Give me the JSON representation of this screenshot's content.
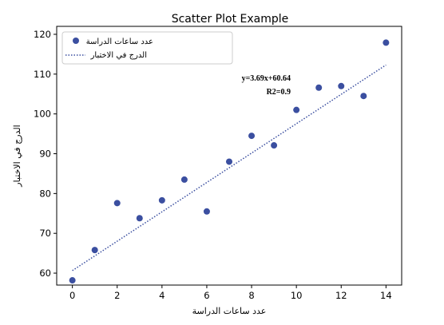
{
  "chart_data": {
    "type": "scatter",
    "title": "Scatter Plot Example",
    "xlabel": "عدد ساعات الدراسة",
    "ylabel": "الدرج في الاختبار",
    "xlim": [
      -0.7,
      14.7
    ],
    "ylim": [
      57,
      122
    ],
    "xticks": [
      0,
      2,
      4,
      6,
      8,
      10,
      12,
      14
    ],
    "yticks": [
      60,
      70,
      80,
      90,
      100,
      110,
      120
    ],
    "series": [
      {
        "name": "عدد ساعات الدراسة",
        "kind": "scatter",
        "color": "#3b4fa0",
        "x": [
          0,
          1,
          2,
          3,
          4,
          5,
          6,
          7,
          8,
          9,
          10,
          11,
          12,
          13,
          14
        ],
        "y": [
          58.2,
          65.8,
          77.6,
          73.8,
          78.3,
          83.5,
          75.5,
          88.0,
          94.5,
          92.1,
          101.0,
          106.6,
          107.0,
          104.5,
          117.9
        ]
      },
      {
        "name": "الدرج في الاختبار",
        "kind": "line",
        "style": "dotted",
        "color": "#3b4fa0",
        "slope": 3.69,
        "intercept": 60.64,
        "x_range": [
          0,
          14
        ]
      }
    ],
    "annotations": [
      "y=3.69x+60.64",
      "R2=0.9"
    ],
    "legend_position": "upper-left",
    "grid": false
  }
}
